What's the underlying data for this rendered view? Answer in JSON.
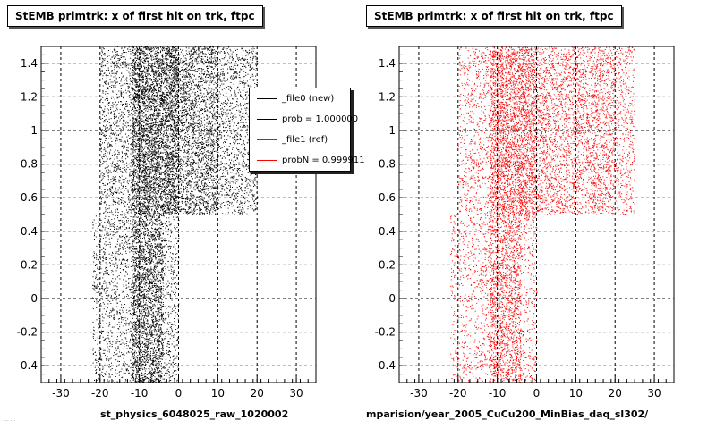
{
  "panels": [
    {
      "title": "StEMB primtrk: x of first hit on trk, ftpc",
      "xlabel": "st_physics_6048025_raw_1020002"
    },
    {
      "title": "StEMB primtrk: x of first hit on trk, ftpc",
      "xlabel": "mparision/year_2005_CuCu200_MinBias_daq_sl302/"
    }
  ],
  "legend": {
    "entries": [
      {
        "label": "_file0 (new)",
        "color": "#000000"
      },
      {
        "label": "prob = 1.000000",
        "color": "#000000"
      },
      {
        "label": "_file1 (ref)",
        "color": "#ff0000"
      },
      {
        "label": "probN = 0.999911",
        "color": "#ff0000"
      }
    ]
  },
  "footnote": "... ...",
  "chart_data": [
    {
      "type": "scatter",
      "title": "StEMB primtrk: x of first hit on trk, ftpc",
      "xlabel": "st_physics_6048025_raw_1020002",
      "ylabel": "",
      "xlim": [
        -35,
        35
      ],
      "ylim": [
        -0.5,
        1.5
      ],
      "xticks": [
        -30,
        -20,
        -10,
        0,
        10,
        20,
        30
      ],
      "yticks": [
        -0.4,
        -0.2,
        0,
        0.2,
        0.4,
        0.6,
        0.8,
        1,
        1.2,
        1.4
      ],
      "ytick_labels": [
        "-0.4",
        "-0.2",
        "-0",
        "0.2",
        "0.4",
        "0.6",
        "0.8",
        "1",
        "1.2",
        "1.4"
      ],
      "grid": true,
      "series": [
        {
          "name": "_file0 (new)",
          "color": "#000000"
        }
      ],
      "regions": [
        {
          "x": [
            -22,
            0
          ],
          "y": [
            -0.5,
            0.5
          ],
          "density": 0.35
        },
        {
          "x": [
            -12,
            -4
          ],
          "y": [
            -0.5,
            0.5
          ],
          "density": 0.8
        },
        {
          "x": [
            -20,
            20
          ],
          "y": [
            0.5,
            1.5
          ],
          "density": 0.45
        },
        {
          "x": [
            -12,
            0
          ],
          "y": [
            0.5,
            1.5
          ],
          "density": 1.0
        },
        {
          "x": [
            0,
            10
          ],
          "y": [
            0.5,
            1.5
          ],
          "density": 0.35
        }
      ]
    },
    {
      "type": "scatter",
      "title": "StEMB primtrk: x of first hit on trk, ftpc",
      "xlabel": "mparision/year_2005_CuCu200_MinBias_daq_sl302/",
      "ylabel": "",
      "xlim": [
        -35,
        35
      ],
      "ylim": [
        -0.5,
        1.5
      ],
      "xticks": [
        -30,
        -20,
        -10,
        0,
        10,
        20,
        30
      ],
      "yticks": [
        -0.4,
        -0.2,
        0,
        0.2,
        0.4,
        0.6,
        0.8,
        1,
        1.2,
        1.4
      ],
      "ytick_labels": [
        "-0.4",
        "-0.2",
        "-0",
        "0.2",
        "0.4",
        "0.6",
        "0.8",
        "1",
        "1.2",
        "1.4"
      ],
      "grid": true,
      "series": [
        {
          "name": "_file1 (ref)",
          "color": "#ff0000"
        }
      ],
      "regions": [
        {
          "x": [
            -22,
            0
          ],
          "y": [
            -0.5,
            0.5
          ],
          "density": 0.25
        },
        {
          "x": [
            -12,
            -4
          ],
          "y": [
            -0.5,
            0.5
          ],
          "density": 0.55
        },
        {
          "x": [
            -20,
            25
          ],
          "y": [
            0.5,
            1.5
          ],
          "density": 0.3
        },
        {
          "x": [
            -12,
            0
          ],
          "y": [
            0.5,
            1.5
          ],
          "density": 0.7
        },
        {
          "x": [
            0,
            20
          ],
          "y": [
            0.5,
            1.5
          ],
          "density": 0.25
        }
      ]
    }
  ]
}
